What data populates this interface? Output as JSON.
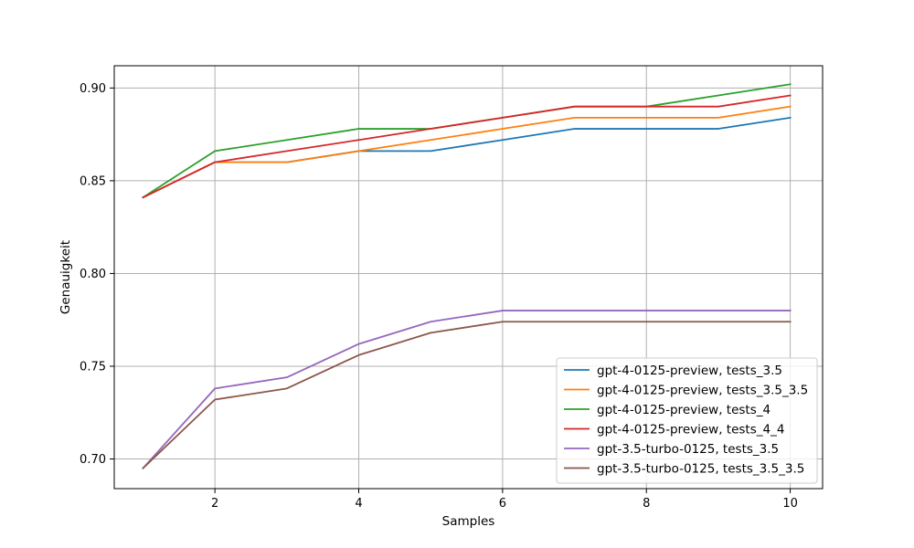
{
  "chart_data": {
    "type": "line",
    "title": "",
    "xlabel": "Samples",
    "ylabel": "Genauigkeit",
    "x": [
      1,
      2,
      3,
      4,
      5,
      6,
      7,
      8,
      9,
      10
    ],
    "xlim": [
      0.6,
      10.45
    ],
    "ylim": [
      0.684,
      0.912
    ],
    "xticks": [
      2,
      4,
      6,
      8,
      10
    ],
    "xtick_labels": [
      "2",
      "4",
      "6",
      "8",
      "10"
    ],
    "yticks": [
      0.7,
      0.75,
      0.8,
      0.85,
      0.9
    ],
    "ytick_labels": [
      "0.70",
      "0.75",
      "0.80",
      "0.85",
      "0.90"
    ],
    "grid": true,
    "legend_position": "lower-right",
    "series": [
      {
        "name": "gpt-4-0125-preview, tests_3.5",
        "color": "#1f77b4",
        "values": [
          0.841,
          0.86,
          0.86,
          0.866,
          0.866,
          0.872,
          0.878,
          0.878,
          0.878,
          0.884
        ]
      },
      {
        "name": "gpt-4-0125-preview, tests_3.5_3.5",
        "color": "#ff7f0e",
        "values": [
          0.841,
          0.86,
          0.86,
          0.866,
          0.872,
          0.878,
          0.884,
          0.884,
          0.884,
          0.89
        ]
      },
      {
        "name": "gpt-4-0125-preview, tests_4",
        "color": "#2ca02c",
        "values": [
          0.841,
          0.866,
          0.872,
          0.878,
          0.878,
          0.884,
          0.89,
          0.89,
          0.896,
          0.902
        ]
      },
      {
        "name": "gpt-4-0125-preview, tests_4_4",
        "color": "#d62728",
        "values": [
          0.841,
          0.86,
          0.866,
          0.872,
          0.878,
          0.884,
          0.89,
          0.89,
          0.89,
          0.896
        ]
      },
      {
        "name": "gpt-3.5-turbo-0125, tests_3.5",
        "color": "#9467bd",
        "values": [
          0.695,
          0.738,
          0.744,
          0.762,
          0.774,
          0.78,
          0.78,
          0.78,
          0.78,
          0.78
        ]
      },
      {
        "name": "gpt-3.5-turbo-0125, tests_3.5_3.5",
        "color": "#8c564b",
        "values": [
          0.695,
          0.732,
          0.738,
          0.756,
          0.768,
          0.774,
          0.774,
          0.774,
          0.774,
          0.774
        ]
      }
    ]
  }
}
